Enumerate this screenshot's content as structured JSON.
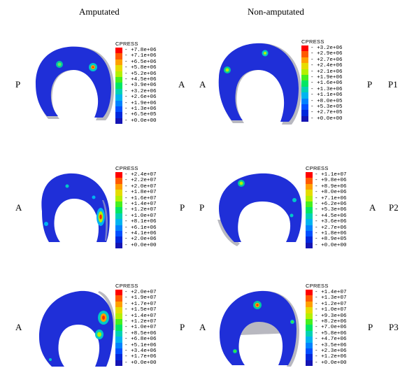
{
  "columns": {
    "amputated": "Amputated",
    "non_amputated": "Non-amputated"
  },
  "rows": [
    {
      "row_label": "P1",
      "amputated": {
        "left_label": "P",
        "right_label": "A",
        "legend": {
          "title": "CPRESS",
          "values": [
            "+7.8e+06",
            "+7.1e+06",
            "+6.5e+06",
            "+5.8e+06",
            "+5.2e+06",
            "+4.5e+06",
            "+3.9e+06",
            "+3.2e+06",
            "+2.6e+06",
            "+1.9e+06",
            "+1.3e+06",
            "+6.5e+05",
            "+0.0e+00"
          ]
        }
      },
      "non_amputated": {
        "left_label": "A",
        "right_label": "P",
        "legend": {
          "title": "CPRESS",
          "values": [
            "+3.2e+06",
            "+2.9e+06",
            "+2.7e+06",
            "+2.4e+06",
            "+2.1e+06",
            "+1.9e+06",
            "+1.6e+06",
            "+1.3e+06",
            "+1.1e+06",
            "+8.0e+05",
            "+5.3e+05",
            "+2.7e+05",
            "+0.0e+00"
          ]
        }
      }
    },
    {
      "row_label": "P2",
      "amputated": {
        "left_label": "A",
        "right_label": "P",
        "legend": {
          "title": "CPRESS",
          "values": [
            "+2.4e+07",
            "+2.2e+07",
            "+2.0e+07",
            "+1.8e+07",
            "+1.6e+07",
            "+1.4e+07",
            "+1.2e+07",
            "+1.0e+07",
            "+8.1e+06",
            "+6.1e+06",
            "+4.1e+06",
            "+2.0e+06",
            "+0.0e+00"
          ]
        }
      },
      "non_amputated": {
        "left_label": "P",
        "right_label": "A",
        "legend": {
          "title": "CPRESS",
          "values": [
            "+1.1e+07",
            "+9.8e+06",
            "+8.9e+06",
            "+8.0e+06",
            "+7.1e+06",
            "+6.2e+06",
            "+5.3e+06",
            "+4.5e+06",
            "+3.6e+06",
            "+2.7e+06",
            "+1.8e+06",
            "+8.9e+05",
            "+0.0e+00"
          ]
        }
      }
    },
    {
      "row_label": "P3",
      "amputated": {
        "left_label": "A",
        "right_label": "P",
        "legend": {
          "title": "CPRESS",
          "values": [
            "+2.0e+07",
            "+1.9e+07",
            "+1.7e+07",
            "+1.5e+07",
            "+1.4e+07",
            "+1.2e+07",
            "+1.0e+07",
            "+8.5e+06",
            "+6.8e+06",
            "+5.1e+06",
            "+3.4e+06",
            "+1.7e+06",
            "+0.0e+00"
          ]
        }
      },
      "non_amputated": {
        "left_label": "A",
        "right_label": "P",
        "legend": {
          "title": "CPRESS",
          "values": [
            "+1.4e+07",
            "+1.3e+07",
            "+1.2e+07",
            "+1.0e+07",
            "+9.3e+06",
            "+8.2e+06",
            "+7.0e+06",
            "+5.8e+06",
            "+4.7e+06",
            "+3.5e+06",
            "+2.3e+06",
            "+1.2e+06",
            "+0.0e+00"
          ]
        }
      }
    }
  ],
  "colormap": [
    "#ff0000",
    "#ff5a00",
    "#ffa000",
    "#e6dc00",
    "#b4f000",
    "#46f01e",
    "#00e664",
    "#00d2b4",
    "#00b4f0",
    "#0082ff",
    "#0050ff",
    "#0028dc",
    "#1414b4"
  ],
  "colors": {
    "model_fill": "#1f2fd8",
    "model_edge": "#b8b8c0"
  }
}
